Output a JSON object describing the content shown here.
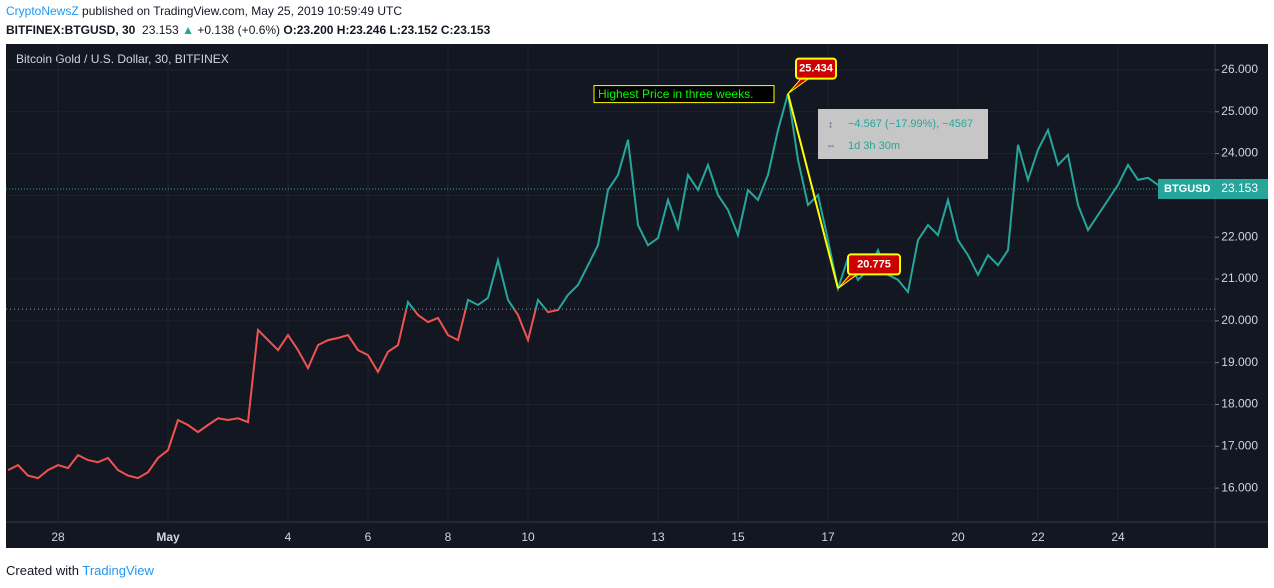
{
  "header": {
    "publisher": "CryptoNewsZ",
    "published": "published on TradingView.com, May 25, 2019 10:59:49 UTC",
    "symbol": "BITFINEX:BTGUSD, 30",
    "price": "23.153",
    "change": "+0.138 (+0.6%)",
    "open": "O:23.200",
    "high": "H:23.246",
    "low": "L:23.152",
    "close": "C:23.153"
  },
  "footer": {
    "created": "Created with",
    "brand": "TradingView"
  },
  "chart_data": {
    "type": "line",
    "title": "Bitcoin Gold / U.S. Dollar, 30, BITFINEX",
    "categories": [
      null,
      null,
      null,
      null,
      null,
      "28",
      null,
      null,
      null,
      null,
      null,
      null,
      null,
      null,
      null,
      null,
      "May",
      null,
      null,
      null,
      null,
      null,
      null,
      null,
      null,
      null,
      null,
      null,
      "4",
      null,
      null,
      null,
      null,
      null,
      null,
      null,
      "6",
      null,
      null,
      null,
      null,
      null,
      null,
      null,
      "8",
      null,
      null,
      null,
      null,
      null,
      null,
      null,
      "10",
      null,
      null,
      null,
      null,
      null,
      null,
      null,
      null,
      null,
      null,
      null,
      null,
      "13",
      null,
      null,
      null,
      null,
      null,
      null,
      null,
      "15",
      null,
      null,
      null,
      null,
      null,
      null,
      null,
      null,
      "17",
      null,
      null,
      null,
      null,
      null,
      null,
      null,
      null,
      null,
      null,
      null,
      null,
      "20",
      null,
      null,
      null,
      null,
      null,
      null,
      null,
      "22",
      null,
      null,
      null,
      null,
      null,
      null,
      null,
      "24",
      null,
      null,
      null,
      null,
      null
    ],
    "series": [
      {
        "name": "BTGUSD",
        "color_above": "#26a69a",
        "color_below": "#ef5350",
        "values": [
          16.43,
          16.55,
          16.3,
          16.24,
          16.43,
          16.55,
          16.48,
          16.79,
          16.67,
          16.62,
          16.72,
          16.43,
          16.3,
          16.24,
          16.38,
          16.72,
          16.91,
          17.63,
          17.51,
          17.34,
          17.51,
          17.67,
          17.63,
          17.67,
          17.58,
          19.78,
          19.54,
          19.3,
          19.66,
          19.3,
          18.87,
          19.42,
          19.54,
          19.59,
          19.66,
          19.3,
          19.18,
          18.78,
          19.26,
          19.42,
          20.45,
          20.14,
          19.97,
          20.07,
          19.66,
          19.54,
          20.5,
          20.38,
          20.55,
          21.45,
          20.5,
          20.14,
          19.54,
          20.5,
          20.21,
          20.26,
          20.62,
          20.86,
          21.33,
          21.81,
          23.13,
          23.49,
          24.33,
          22.29,
          21.81,
          21.98,
          22.89,
          22.22,
          23.49,
          23.13,
          23.73,
          23.01,
          22.65,
          22.05,
          23.13,
          22.89,
          23.49,
          24.56,
          25.434,
          23.85,
          22.77,
          23.01,
          21.93,
          20.775,
          21.5,
          20.98,
          21.22,
          21.69,
          21.1,
          20.98,
          20.69,
          21.93,
          22.29,
          22.05,
          22.89,
          21.93,
          21.57,
          21.1,
          21.57,
          21.33,
          21.69,
          24.21,
          23.37,
          24.09,
          24.56,
          23.73,
          23.97,
          22.77,
          22.17,
          22.53,
          22.89,
          23.25,
          23.73,
          23.37,
          23.42,
          23.25,
          23.153
        ]
      }
    ],
    "baseline": 20.28,
    "last": 23.153,
    "ylim": [
      15.19,
      26.62
    ],
    "yticks": [
      {
        "value": 16,
        "label": "16.000"
      },
      {
        "value": 17,
        "label": "17.000"
      },
      {
        "value": 18,
        "label": "18.000"
      },
      {
        "value": 19,
        "label": "19.000"
      },
      {
        "value": 20,
        "label": "20.000"
      },
      {
        "value": 21,
        "label": "21.000"
      },
      {
        "value": 22,
        "label": "22.000"
      },
      {
        "value": 23,
        "label": "23.000"
      },
      {
        "value": 24,
        "label": "24.000"
      },
      {
        "value": 25,
        "label": "25.000"
      },
      {
        "value": 26,
        "label": "26.000"
      }
    ],
    "annotations": {
      "high": 25.434,
      "low": 20.775,
      "note": "Highest Price in three weeks.",
      "change": "−4.567 (−17.99%), −4567",
      "duration": "1d 3h 30m"
    }
  }
}
